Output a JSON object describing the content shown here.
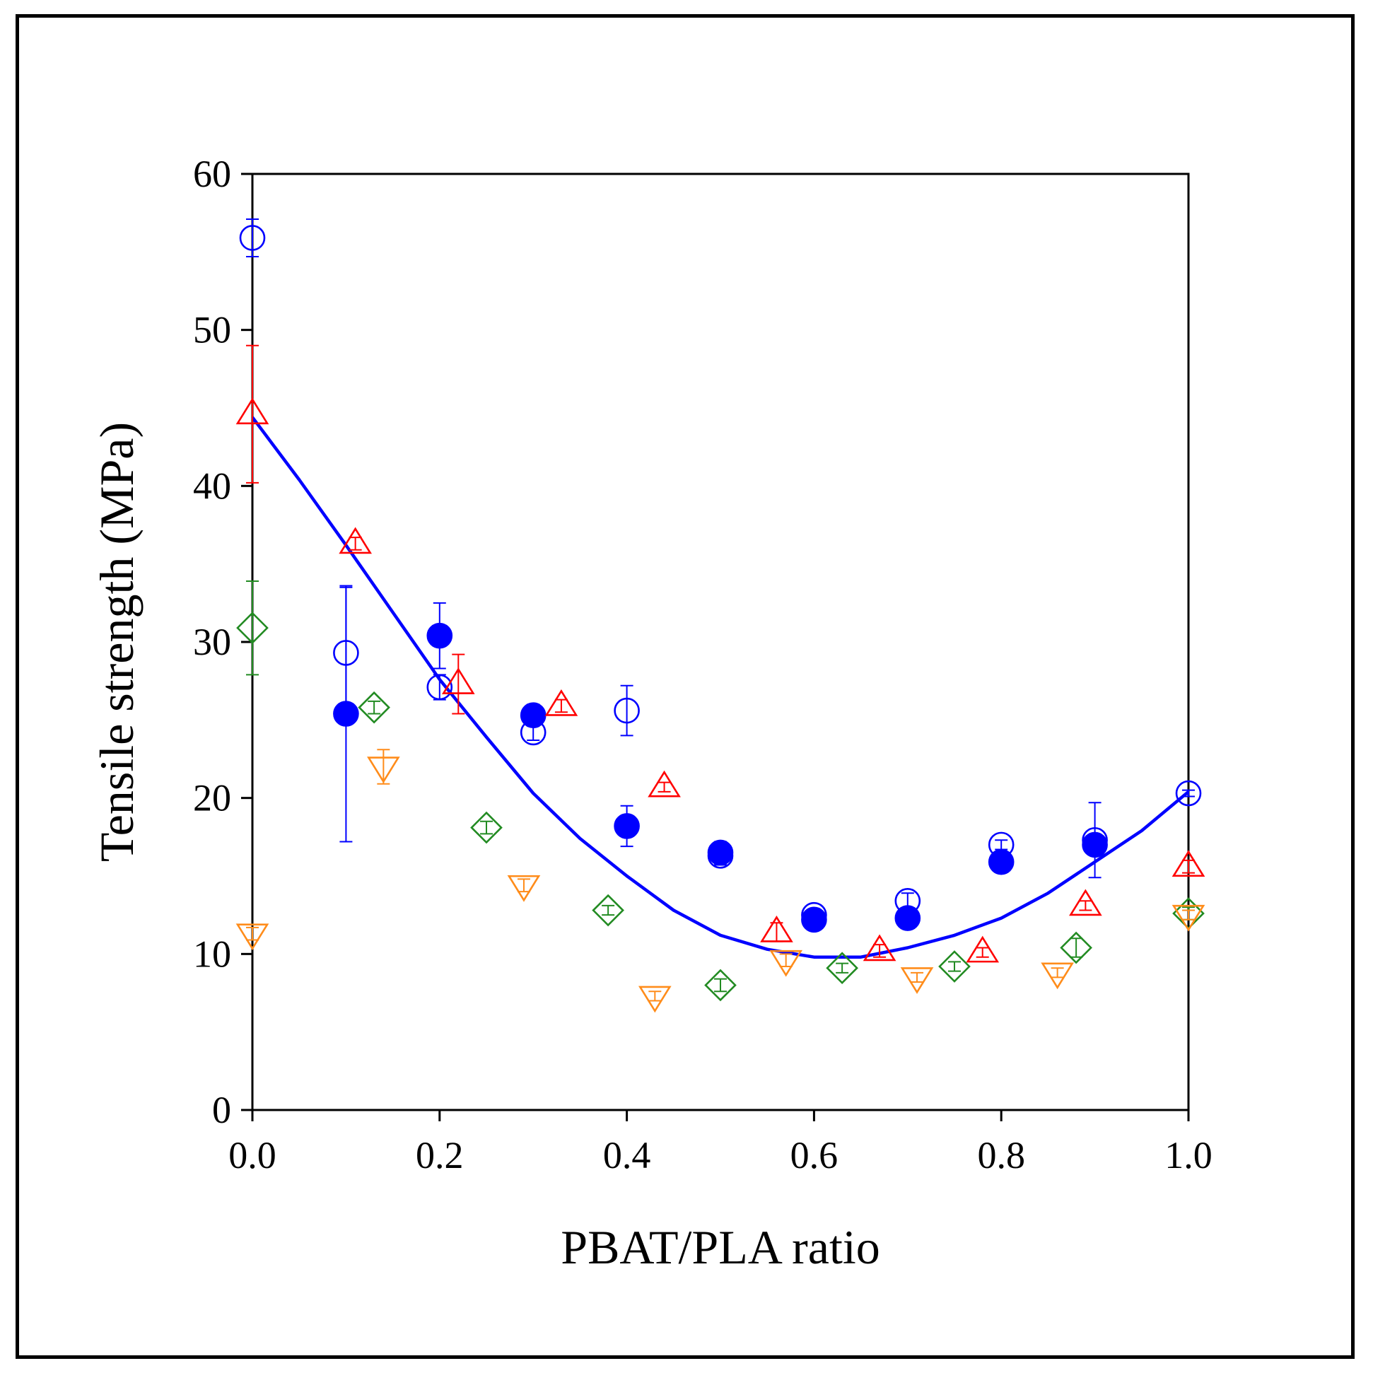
{
  "chart_data": {
    "type": "scatter",
    "title": "",
    "xlabel": "PBAT/PLA ratio",
    "ylabel": "Tensile strength (MPa)",
    "xlim": [
      0.0,
      1.0
    ],
    "ylim": [
      0,
      60
    ],
    "xticks": [
      "0.0",
      "0.2",
      "0.4",
      "0.6",
      "0.8",
      "1.0"
    ],
    "yticks": [
      "0",
      "10",
      "20",
      "30",
      "40",
      "50",
      "60"
    ],
    "grid": false,
    "legend": "none",
    "series": [
      {
        "name": "open-circle",
        "marker": "circle-open",
        "color": "#0000ff",
        "points": [
          {
            "x": 0.0,
            "y": 55.9,
            "err": 1.2
          },
          {
            "x": 0.1,
            "y": 29.3,
            "err": 4.2
          },
          {
            "x": 0.2,
            "y": 27.1,
            "err": 0.8
          },
          {
            "x": 0.3,
            "y": 24.2,
            "err": 0.5
          },
          {
            "x": 0.4,
            "y": 25.6,
            "err": 1.6
          },
          {
            "x": 0.5,
            "y": 16.3,
            "err": 0.6
          },
          {
            "x": 0.6,
            "y": 12.5,
            "err": 0.3
          },
          {
            "x": 0.7,
            "y": 13.4,
            "err": 0.5
          },
          {
            "x": 0.8,
            "y": 17.0,
            "err": 0.3
          },
          {
            "x": 0.9,
            "y": 17.3,
            "err": 2.4
          },
          {
            "x": 1.0,
            "y": 20.3,
            "err": 0.2
          }
        ]
      },
      {
        "name": "filled-circle",
        "marker": "circle-filled",
        "color": "#0000ff",
        "points": [
          {
            "x": 0.1,
            "y": 25.4,
            "err": 8.2
          },
          {
            "x": 0.2,
            "y": 30.4,
            "err": 2.1
          },
          {
            "x": 0.3,
            "y": 25.3,
            "err": 0.7
          },
          {
            "x": 0.4,
            "y": 18.2,
            "err": 1.3
          },
          {
            "x": 0.5,
            "y": 16.5,
            "err": 0.7
          },
          {
            "x": 0.6,
            "y": 12.2,
            "err": 0.4
          },
          {
            "x": 0.7,
            "y": 12.3,
            "err": 0.3
          },
          {
            "x": 0.8,
            "y": 15.9,
            "err": 0.3
          },
          {
            "x": 0.9,
            "y": 17.0,
            "err": 0.5
          }
        ]
      },
      {
        "name": "triangle-up",
        "marker": "triangle-up-open",
        "color": "#ff0000",
        "points": [
          {
            "x": 0.0,
            "y": 44.6,
            "err": 4.4
          },
          {
            "x": 0.11,
            "y": 36.3,
            "err": 0.4
          },
          {
            "x": 0.22,
            "y": 27.3,
            "err": 1.9
          },
          {
            "x": 0.33,
            "y": 25.9,
            "err": 0.4
          },
          {
            "x": 0.44,
            "y": 20.7,
            "err": 0.3
          },
          {
            "x": 0.56,
            "y": 11.4,
            "err": 0.6
          },
          {
            "x": 0.67,
            "y": 10.2,
            "err": 0.4
          },
          {
            "x": 0.78,
            "y": 10.1,
            "err": 0.3
          },
          {
            "x": 0.89,
            "y": 13.1,
            "err": 0.3
          },
          {
            "x": 1.0,
            "y": 15.6,
            "err": 0.4
          }
        ]
      },
      {
        "name": "diamond",
        "marker": "diamond-open",
        "color": "#228b22",
        "points": [
          {
            "x": 0.0,
            "y": 30.9,
            "err": 3.0
          },
          {
            "x": 0.13,
            "y": 25.8,
            "err": 0.4
          },
          {
            "x": 0.25,
            "y": 18.1,
            "err": 0.4
          },
          {
            "x": 0.38,
            "y": 12.8,
            "err": 0.3
          },
          {
            "x": 0.5,
            "y": 8.0,
            "err": 0.4
          },
          {
            "x": 0.63,
            "y": 9.1,
            "err": 0.3
          },
          {
            "x": 0.75,
            "y": 9.2,
            "err": 0.3
          },
          {
            "x": 0.88,
            "y": 10.4,
            "err": 0.6
          },
          {
            "x": 1.0,
            "y": 12.6,
            "err": 0.4
          }
        ]
      },
      {
        "name": "triangle-down",
        "marker": "triangle-down-open",
        "color": "#ff8c1a",
        "points": [
          {
            "x": 0.0,
            "y": 11.3,
            "err": 0.4
          },
          {
            "x": 0.14,
            "y": 22.0,
            "err": 1.1
          },
          {
            "x": 0.29,
            "y": 14.4,
            "err": 0.4
          },
          {
            "x": 0.43,
            "y": 7.3,
            "err": 0.3
          },
          {
            "x": 0.57,
            "y": 9.6,
            "err": 0.4
          },
          {
            "x": 0.71,
            "y": 8.5,
            "err": 0.3
          },
          {
            "x": 0.86,
            "y": 8.8,
            "err": 0.3
          },
          {
            "x": 1.0,
            "y": 12.5,
            "err": 0.3
          }
        ]
      }
    ],
    "fit_line": {
      "name": "fit-curve",
      "color": "#0000ff",
      "x": [
        0.0,
        0.05,
        0.1,
        0.15,
        0.2,
        0.25,
        0.3,
        0.35,
        0.4,
        0.45,
        0.5,
        0.55,
        0.6,
        0.65,
        0.7,
        0.75,
        0.8,
        0.85,
        0.9,
        0.95,
        1.0
      ],
      "y": [
        44.4,
        40.4,
        36.2,
        31.9,
        27.6,
        23.9,
        20.3,
        17.4,
        15.0,
        12.8,
        11.2,
        10.3,
        9.8,
        9.8,
        10.4,
        11.2,
        12.3,
        13.9,
        15.9,
        17.9,
        20.4
      ]
    }
  }
}
